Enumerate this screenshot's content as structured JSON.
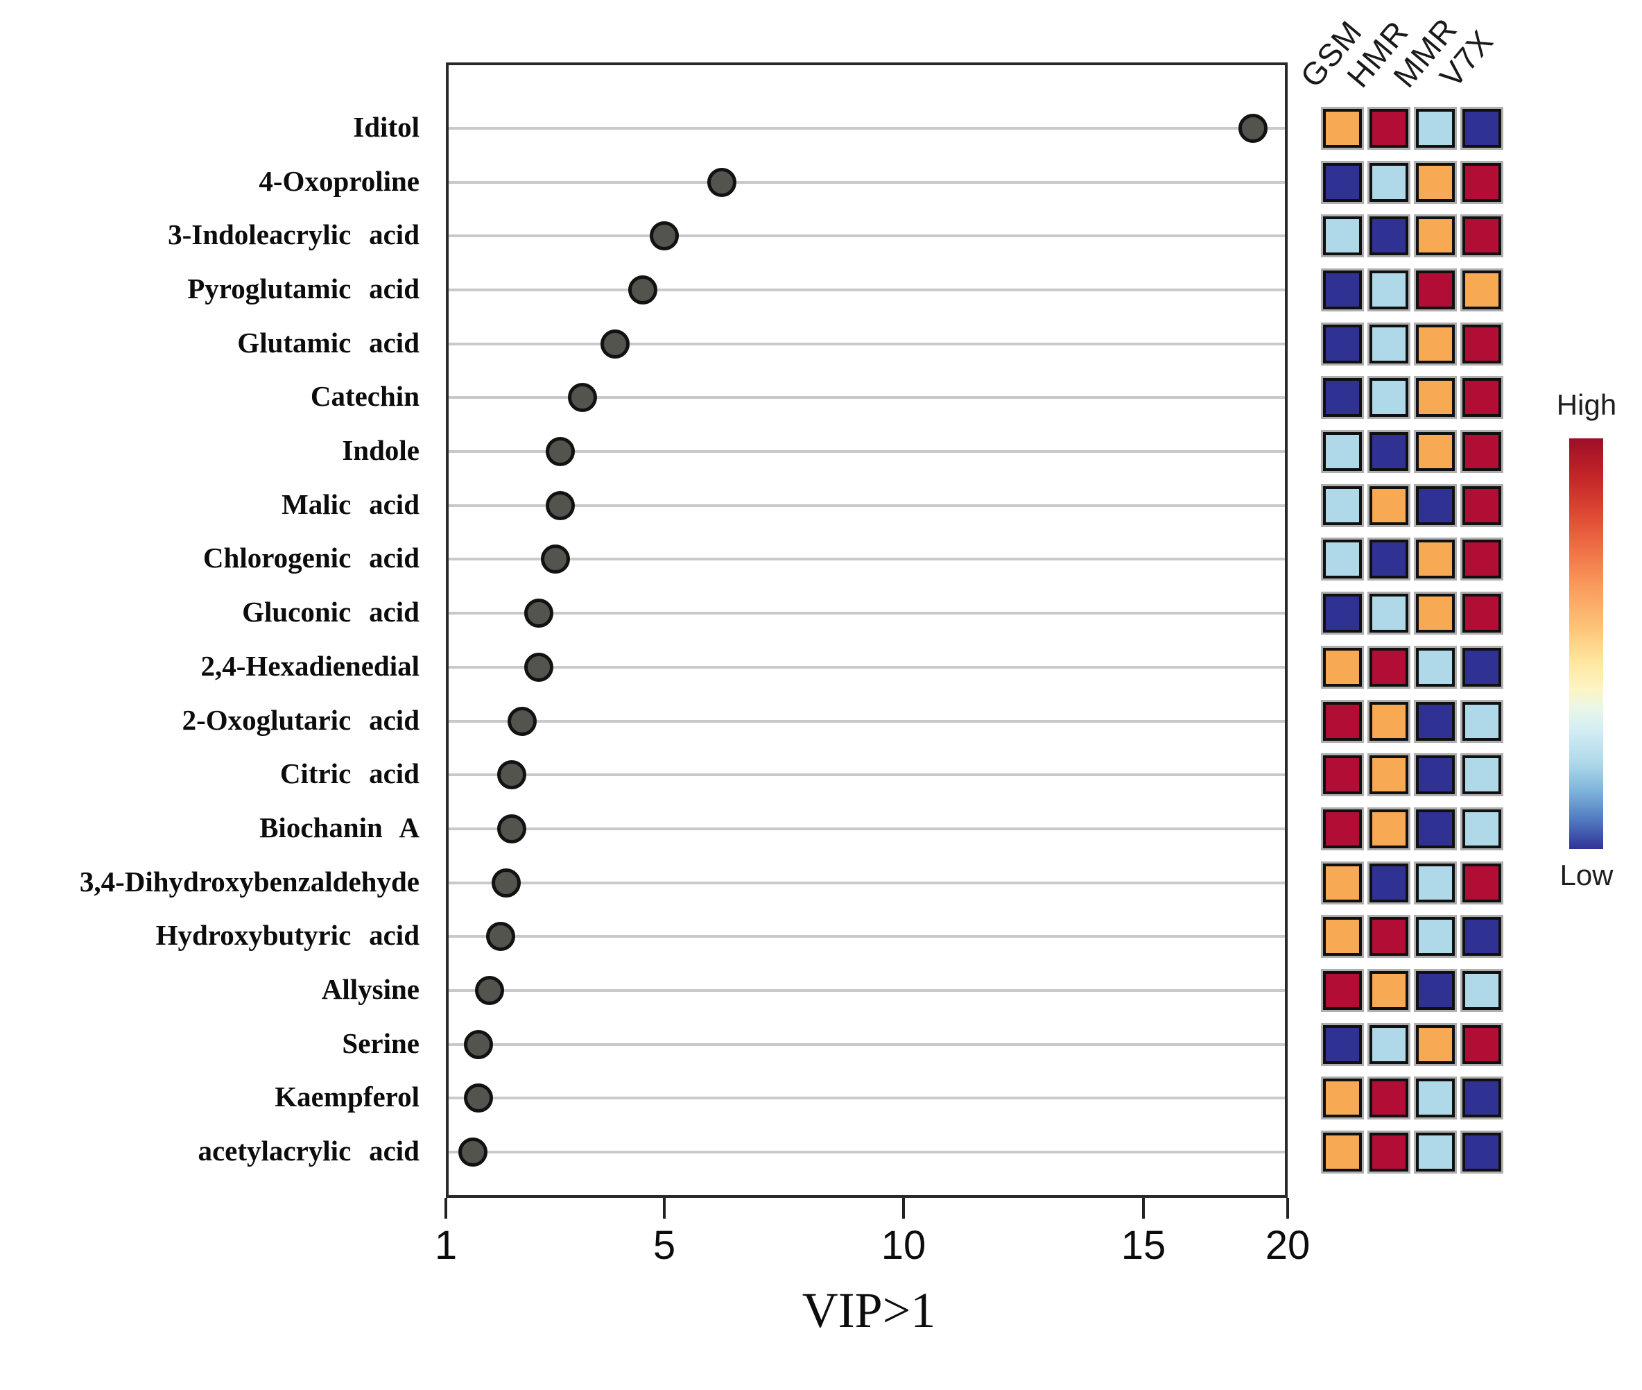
{
  "chart_data": {
    "type": "scatter",
    "subtype": "vip-dot-plot-with-abundance-heatmap",
    "title": "",
    "xlabel": "VIP>1",
    "ylabel": "",
    "xlim": [
      1,
      20
    ],
    "x_ticks": [
      "1",
      "5",
      "10",
      "15",
      "20"
    ],
    "x_tick_values": [
      1,
      5,
      10,
      15,
      20
    ],
    "grid": true,
    "categories": [
      "Iditol",
      "4-Oxoproline",
      "3-Indoleacrylic acid",
      "Pyroglutamic acid",
      "Glutamic acid",
      "Catechin",
      "Indole",
      "Malic acid",
      "Chlorogenic acid",
      "Gluconic acid",
      "2,4-Hexadienedial",
      "2-Oxoglutaric acid",
      "Citric acid",
      "Biochanin A",
      "3,4-Dihydroxybenzaldehyde",
      "Hydroxybutyric acid",
      "Allysine",
      "Serine",
      "Kaempferol",
      "acetylacrylic acid"
    ],
    "series": [
      {
        "name": "VIP score",
        "values": [
          18.8,
          6.2,
          5.0,
          4.6,
          4.1,
          3.5,
          3.1,
          3.1,
          3.0,
          2.7,
          2.7,
          2.4,
          2.2,
          2.2,
          2.1,
          2.0,
          1.8,
          1.6,
          1.6,
          1.5
        ]
      }
    ],
    "heatmap": {
      "columns": [
        "GSM",
        "HMR",
        "MMR",
        "V7X"
      ],
      "scale_meaning": {
        "red": "high",
        "orange": "mid-high",
        "lightblue": "mid-low",
        "darkblue": "low"
      },
      "cells": [
        [
          "orange",
          "red",
          "lightblue",
          "darkblue"
        ],
        [
          "darkblue",
          "lightblue",
          "orange",
          "red"
        ],
        [
          "lightblue",
          "darkblue",
          "orange",
          "red"
        ],
        [
          "darkblue",
          "lightblue",
          "red",
          "orange"
        ],
        [
          "darkblue",
          "lightblue",
          "orange",
          "red"
        ],
        [
          "darkblue",
          "lightblue",
          "orange",
          "red"
        ],
        [
          "lightblue",
          "darkblue",
          "orange",
          "red"
        ],
        [
          "lightblue",
          "orange",
          "darkblue",
          "red"
        ],
        [
          "lightblue",
          "darkblue",
          "orange",
          "red"
        ],
        [
          "darkblue",
          "lightblue",
          "orange",
          "red"
        ],
        [
          "orange",
          "red",
          "lightblue",
          "darkblue"
        ],
        [
          "red",
          "orange",
          "darkblue",
          "lightblue"
        ],
        [
          "red",
          "orange",
          "darkblue",
          "lightblue"
        ],
        [
          "red",
          "orange",
          "darkblue",
          "lightblue"
        ],
        [
          "orange",
          "darkblue",
          "lightblue",
          "red"
        ],
        [
          "orange",
          "red",
          "lightblue",
          "darkblue"
        ],
        [
          "red",
          "orange",
          "darkblue",
          "lightblue"
        ],
        [
          "darkblue",
          "lightblue",
          "orange",
          "red"
        ],
        [
          "orange",
          "red",
          "lightblue",
          "darkblue"
        ],
        [
          "orange",
          "red",
          "lightblue",
          "darkblue"
        ]
      ]
    },
    "colorbar": {
      "high_label": "High",
      "low_label": "Low"
    }
  },
  "colors": {
    "dot_fill": "#54544e",
    "dot_border": "#121212",
    "red": "#b20d35",
    "orange": "#f8a953",
    "lightblue": "#afd9e8",
    "darkblue": "#2f3293",
    "gridline": "#c9c9c9"
  }
}
